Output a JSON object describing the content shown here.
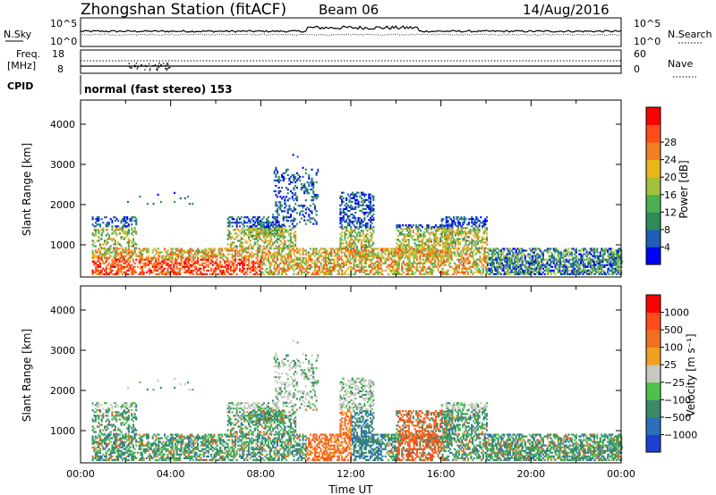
{
  "header": {
    "station": "Zhongshan Station (fitACF)",
    "beam": "Beam 06",
    "date": "14/Aug/2016"
  },
  "noise_panel": {
    "left_label": "N.Sky",
    "left_ticks": [
      "10^5",
      "10^0"
    ],
    "right_label": "N.Search",
    "right_ticks": [
      "10^5",
      "10^0"
    ]
  },
  "freq_panel": {
    "left_label_line1": "Freq.",
    "left_label_line2": "[MHz]",
    "left_ticks": [
      "18",
      "8"
    ],
    "right_label": "Nave",
    "right_ticks": [
      "60",
      "0"
    ]
  },
  "cpid": {
    "label": "CPID",
    "value": "normal (fast stereo) 153"
  },
  "chart_data": [
    {
      "type": "heatmap",
      "name": "power",
      "ylabel": "Slant Range [km]",
      "ylim": [
        200,
        4600
      ],
      "yticks": [
        "1000",
        "2000",
        "3000",
        "4000"
      ],
      "xlim_hours": [
        0,
        24
      ],
      "colorbar": {
        "label": "Power [dB]",
        "ticks": [
          "4",
          "8",
          "12",
          "16",
          "20",
          "24",
          "28"
        ],
        "colors": [
          "#0000ff",
          "#1c5fb4",
          "#2e8b57",
          "#4caf50",
          "#a3c03a",
          "#e8b61a",
          "#f08020",
          "#ff4d1a",
          "#ff0000"
        ]
      }
    },
    {
      "type": "heatmap",
      "name": "velocity",
      "ylabel": "Slant Range [km]",
      "ylim": [
        200,
        4600
      ],
      "yticks": [
        "1000",
        "2000",
        "3000",
        "4000"
      ],
      "xlim_hours": [
        0,
        24
      ],
      "xticks": [
        "00:00",
        "04:00",
        "08:00",
        "12:00",
        "16:00",
        "20:00",
        "00:00"
      ],
      "xlabel": "Time UT",
      "colorbar": {
        "label": "Velocity [m s⁻¹]",
        "ticks": [
          "1000",
          "500",
          "100",
          "25",
          "−25",
          "−100",
          "−500",
          "−1000"
        ],
        "colors": [
          "#1c3fd0",
          "#2a6fb8",
          "#3a8a6a",
          "#4cc24c",
          "#c8c8c0",
          "#f0a020",
          "#f07020",
          "#ff4d1a",
          "#ff0000"
        ]
      }
    }
  ]
}
